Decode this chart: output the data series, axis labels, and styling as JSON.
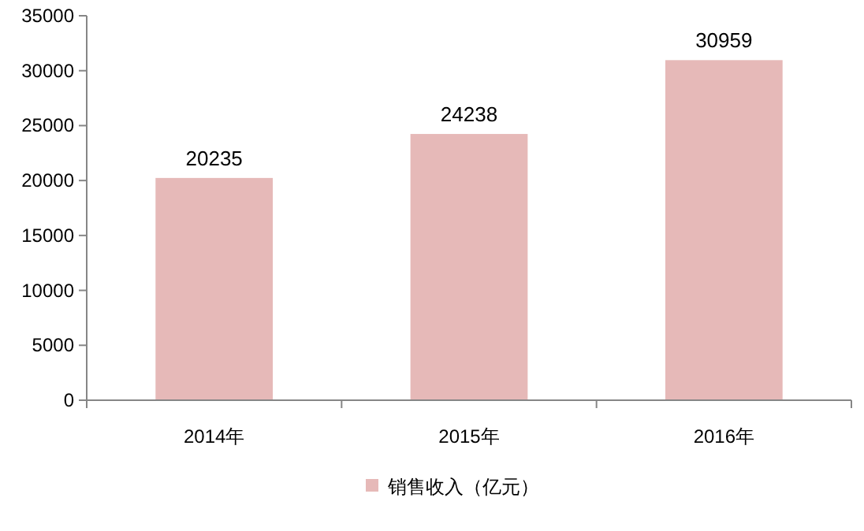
{
  "chart_data": {
    "type": "bar",
    "categories": [
      "2014年",
      "2015年",
      "2016年"
    ],
    "series": [
      {
        "name": "销售收入（亿元）",
        "color": "#e6b9b8",
        "values": [
          20235,
          24238,
          30959
        ]
      }
    ],
    "ylim": [
      0,
      35000
    ],
    "yticks": [
      0,
      5000,
      10000,
      15000,
      20000,
      25000,
      30000,
      35000
    ],
    "data_labels": true,
    "legend": "bottom",
    "grid": false
  }
}
